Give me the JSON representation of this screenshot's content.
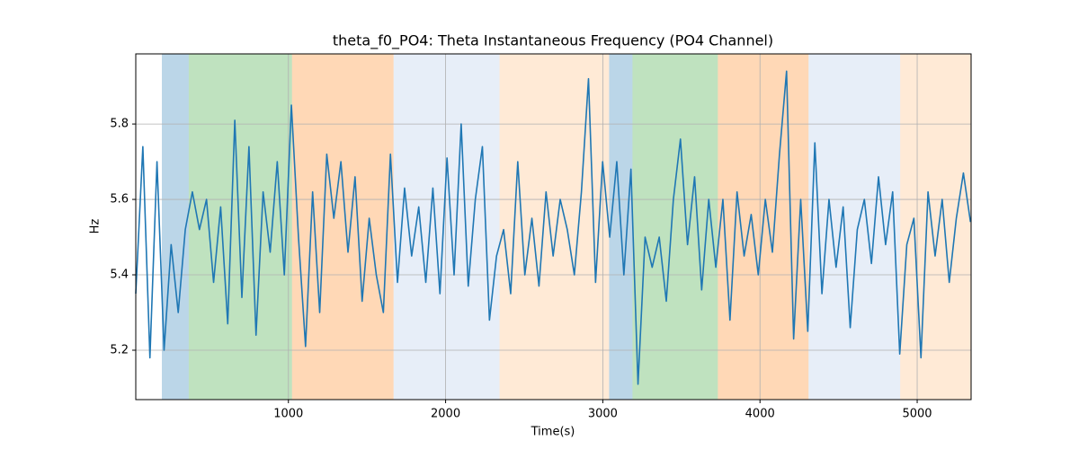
{
  "chart_data": {
    "type": "line",
    "title": "theta_f0_PO4: Theta Instantaneous Frequency (PO4 Channel)",
    "x_label": "Time(s)",
    "y_label": "Hz",
    "x": [
      29,
      74,
      119,
      164,
      209,
      254,
      299,
      344,
      389,
      434,
      479,
      524,
      569,
      614,
      659,
      704,
      749,
      794,
      839,
      884,
      929,
      974,
      1019,
      1064,
      1109,
      1154,
      1199,
      1244,
      1289,
      1334,
      1379,
      1424,
      1469,
      1514,
      1559,
      1604,
      1649,
      1694,
      1739,
      1784,
      1829,
      1874,
      1919,
      1964,
      2009,
      2054,
      2099,
      2144,
      2189,
      2234,
      2279,
      2324,
      2369,
      2414,
      2459,
      2504,
      2549,
      2594,
      2639,
      2684,
      2729,
      2774,
      2819,
      2864,
      2909,
      2954,
      2999,
      3044,
      3089,
      3134,
      3179,
      3224,
      3269,
      3314,
      3359,
      3404,
      3449,
      3494,
      3539,
      3584,
      3629,
      3674,
      3719,
      3764,
      3809,
      3854,
      3899,
      3944,
      3989,
      4034,
      4079,
      4124,
      4169,
      4214,
      4259,
      4304,
      4349,
      4394,
      4439,
      4484,
      4529,
      4574,
      4619,
      4664,
      4709,
      4754,
      4799,
      4844,
      4889,
      4934,
      4979,
      5024,
      5069,
      5114,
      5159,
      5204,
      5249,
      5294,
      5339
    ],
    "series": [
      {
        "name": "theta_f0_PO4",
        "color": "#1f77b4",
        "values": [
          5.35,
          5.74,
          5.18,
          5.7,
          5.2,
          5.48,
          5.3,
          5.52,
          5.62,
          5.52,
          5.6,
          5.38,
          5.58,
          5.27,
          5.81,
          5.34,
          5.74,
          5.24,
          5.62,
          5.46,
          5.7,
          5.4,
          5.85,
          5.5,
          5.21,
          5.62,
          5.3,
          5.72,
          5.55,
          5.7,
          5.46,
          5.66,
          5.33,
          5.55,
          5.4,
          5.3,
          5.72,
          5.38,
          5.63,
          5.45,
          5.58,
          5.38,
          5.63,
          5.35,
          5.71,
          5.4,
          5.8,
          5.37,
          5.6,
          5.74,
          5.28,
          5.45,
          5.52,
          5.35,
          5.7,
          5.4,
          5.55,
          5.37,
          5.62,
          5.45,
          5.6,
          5.52,
          5.4,
          5.62,
          5.92,
          5.38,
          5.7,
          5.5,
          5.7,
          5.4,
          5.68,
          5.11,
          5.5,
          5.42,
          5.5,
          5.33,
          5.6,
          5.76,
          5.48,
          5.66,
          5.36,
          5.6,
          5.42,
          5.6,
          5.28,
          5.62,
          5.45,
          5.56,
          5.4,
          5.6,
          5.46,
          5.72,
          5.94,
          5.23,
          5.6,
          5.25,
          5.75,
          5.35,
          5.6,
          5.42,
          5.58,
          5.26,
          5.52,
          5.6,
          5.43,
          5.66,
          5.48,
          5.62,
          5.19,
          5.48,
          5.55,
          5.18,
          5.62,
          5.45,
          5.6,
          5.38,
          5.55,
          5.67,
          5.54
        ]
      }
    ],
    "spans": [
      {
        "start": 195,
        "end": 366,
        "color": "#1f77b4"
      },
      {
        "start": 366,
        "end": 1023,
        "color": "#2ca02c"
      },
      {
        "start": 1023,
        "end": 1669,
        "color": "#ff7f0e"
      },
      {
        "start": 1669,
        "end": 2343,
        "color": "#aec7e8"
      },
      {
        "start": 2343,
        "end": 3040,
        "color": "#ffbb78"
      },
      {
        "start": 3040,
        "end": 3189,
        "color": "#1f77b4"
      },
      {
        "start": 3189,
        "end": 3732,
        "color": "#2ca02c"
      },
      {
        "start": 3732,
        "end": 4309,
        "color": "#ff7f0e"
      },
      {
        "start": 4309,
        "end": 4892,
        "color": "#aec7e8"
      },
      {
        "start": 4892,
        "end": 5343,
        "color": "#ffbb78"
      }
    ],
    "span_alpha": 0.3,
    "xlim": [
      29,
      5343
    ],
    "ylim": [
      5.069,
      5.986
    ],
    "xticks": [
      1000,
      2000,
      3000,
      4000,
      5000
    ],
    "yticks": [
      5.2,
      5.4,
      5.6,
      5.8
    ],
    "grid": true
  }
}
